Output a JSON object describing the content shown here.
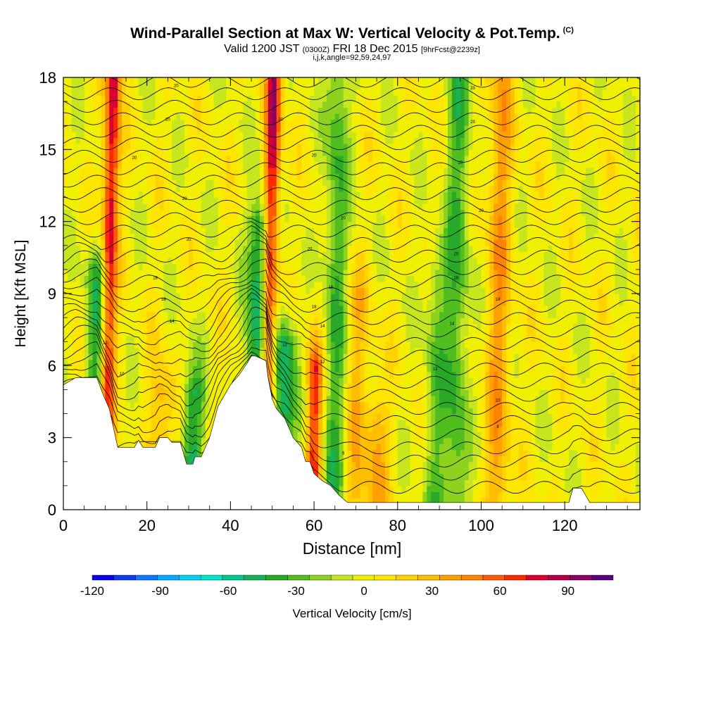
{
  "header": {
    "title": "Wind-Parallel Section at Max W: Vertical Velocity & Pot.Temp.",
    "copyright": "(C)",
    "valid_prefix": "Valid 1200 JST",
    "valid_utc": "(0300Z)",
    "valid_date": "FRI 18 Dec 2015",
    "forecast": "[9hrFcst@2239z]",
    "grid_info": "i,j,k,angle=92,59,24,97"
  },
  "chart_data": {
    "type": "heatmap",
    "title": "Wind-Parallel Section at Max W: Vertical Velocity & Pot.Temp.",
    "xlabel": "Distance [nm]",
    "ylabel": "Height [Kft MSL]",
    "xlim": [
      0,
      138
    ],
    "ylim": [
      0,
      18
    ],
    "xticks": [
      0,
      20,
      40,
      60,
      80,
      100,
      120
    ],
    "yticks": [
      0,
      3,
      6,
      9,
      12,
      15,
      18
    ],
    "colorbar": {
      "label": "Vertical Velocity [cm/s]",
      "ticks": [
        -120,
        -90,
        -60,
        -30,
        0,
        30,
        60,
        90
      ],
      "range": [
        -120,
        110
      ],
      "colors": [
        "#0a00f0",
        "#0a3cf0",
        "#0a78ff",
        "#00aaff",
        "#00d2f0",
        "#00e6c8",
        "#00c88c",
        "#14b45a",
        "#28aa28",
        "#50be1e",
        "#8cd21e",
        "#c8e61e",
        "#f0f000",
        "#ffe600",
        "#ffd200",
        "#ffbe00",
        "#ffa000",
        "#ff8200",
        "#ff5a00",
        "#ff2800",
        "#dc0032",
        "#b40046",
        "#8c0064",
        "#5a0078"
      ]
    },
    "terrain_profile": [
      [
        0,
        5.2
      ],
      [
        3,
        5.5
      ],
      [
        8,
        5.5
      ],
      [
        9.5,
        4.8
      ],
      [
        11,
        4.2
      ],
      [
        12.5,
        3.0
      ],
      [
        13,
        2.6
      ],
      [
        17,
        2.6
      ],
      [
        18,
        2.9
      ],
      [
        19,
        2.6
      ],
      [
        22,
        2.6
      ],
      [
        23,
        3.0
      ],
      [
        25,
        3.0
      ],
      [
        26,
        2.8
      ],
      [
        28,
        2.8
      ],
      [
        29,
        2.2
      ],
      [
        29.5,
        1.9
      ],
      [
        31,
        1.9
      ],
      [
        31.5,
        2.2
      ],
      [
        33,
        2.2
      ],
      [
        35,
        3.0
      ],
      [
        37,
        4.3
      ],
      [
        40,
        5.2
      ],
      [
        42,
        5.6
      ],
      [
        44,
        6.1
      ],
      [
        45,
        6.4
      ],
      [
        46,
        6.4
      ],
      [
        48.5,
        6.2
      ],
      [
        49,
        5.5
      ],
      [
        50,
        4.6
      ],
      [
        51,
        4.2
      ],
      [
        53,
        3.8
      ],
      [
        55,
        3.0
      ],
      [
        57,
        2.6
      ],
      [
        58,
        2.0
      ],
      [
        59,
        2.0
      ],
      [
        60,
        1.5
      ],
      [
        62,
        1.2
      ],
      [
        64,
        1.0
      ],
      [
        66,
        0.6
      ],
      [
        68,
        0.3
      ],
      [
        72,
        0.3
      ],
      [
        121,
        0.3
      ],
      [
        122,
        0.9
      ],
      [
        124,
        0.9
      ],
      [
        125,
        0.6
      ],
      [
        126,
        0.3
      ],
      [
        138,
        0.3
      ]
    ],
    "updraft_plumes": [
      {
        "x": 10.5,
        "w": 80,
        "z_top": 18
      },
      {
        "x": 49,
        "w": 85,
        "z_top": 18
      },
      {
        "x": 60,
        "w": 65,
        "z_top": 6
      },
      {
        "x": 23.5,
        "w": 30,
        "z_top": 5
      },
      {
        "x": 75,
        "w": 30,
        "z_top": 4
      },
      {
        "x": 104,
        "w": 35,
        "z_top": 18
      },
      {
        "x": 70,
        "w": 25,
        "z_top": 9
      }
    ],
    "downdraft_plumes": [
      {
        "x": 8,
        "w": -45,
        "z_top": 10
      },
      {
        "x": 46.5,
        "w": -60,
        "z_top": 12
      },
      {
        "x": 53,
        "w": -55,
        "z_top": 7
      },
      {
        "x": 31,
        "w": -45,
        "z_top": 5
      },
      {
        "x": 65,
        "w": -35,
        "z_top": 18
      },
      {
        "x": 94,
        "w": -35,
        "z_top": 18
      },
      {
        "x": 89,
        "w": -25,
        "z_top": 10
      }
    ],
    "isentrope_labels": [
      {
        "text": "20",
        "x": 27,
        "z": 17.6
      },
      {
        "text": "20",
        "x": 98,
        "z": 17.5
      },
      {
        "text": "20",
        "x": 25,
        "z": 16.2
      },
      {
        "text": "20",
        "x": 52,
        "z": 16.2
      },
      {
        "text": "20",
        "x": 98,
        "z": 16.1
      },
      {
        "text": "20",
        "x": 17,
        "z": 14.6
      },
      {
        "text": "20",
        "x": 60,
        "z": 14.7
      },
      {
        "text": "20",
        "x": 95,
        "z": 14.4
      },
      {
        "text": "20",
        "x": 29,
        "z": 12.9
      },
      {
        "text": "20",
        "x": 67,
        "z": 12.1
      },
      {
        "text": "20",
        "x": 100,
        "z": 12.4
      },
      {
        "text": "20",
        "x": 30,
        "z": 11.2
      },
      {
        "text": "20",
        "x": 59,
        "z": 10.8
      },
      {
        "text": "20",
        "x": 94,
        "z": 10.6
      },
      {
        "text": "18",
        "x": 22,
        "z": 9.6
      },
      {
        "text": "18",
        "x": 64,
        "z": 9.2
      },
      {
        "text": "18",
        "x": 94,
        "z": 9.6
      },
      {
        "text": "18",
        "x": 24,
        "z": 8.7
      },
      {
        "text": "18",
        "x": 60,
        "z": 8.4
      },
      {
        "text": "18",
        "x": 104,
        "z": 8.7
      },
      {
        "text": "14",
        "x": 26,
        "z": 7.8
      },
      {
        "text": "14",
        "x": 62,
        "z": 7.6
      },
      {
        "text": "14",
        "x": 93,
        "z": 7.7
      },
      {
        "text": "12",
        "x": 10,
        "z": 6.9
      },
      {
        "text": "12",
        "x": 53,
        "z": 6.8
      },
      {
        "text": "12",
        "x": 62,
        "z": 6.1
      },
      {
        "text": "12",
        "x": 89,
        "z": 5.8
      },
      {
        "text": "10",
        "x": 14,
        "z": 5.6
      },
      {
        "text": "10",
        "x": 104,
        "z": 4.5
      },
      {
        "text": "8",
        "x": 104,
        "z": 3.4
      },
      {
        "text": "6",
        "x": 67,
        "z": 2.3
      }
    ]
  }
}
